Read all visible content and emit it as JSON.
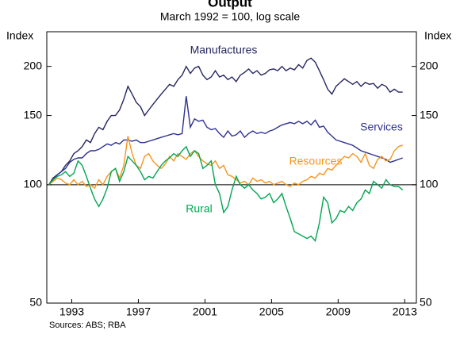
{
  "chart_data": {
    "type": "line",
    "title": "Output",
    "subtitle": "March 1992 = 100, log scale",
    "y_label": "Index",
    "y2_label": "Index",
    "source": "Sources: ABS; RBA",
    "log_scale": true,
    "grid": false,
    "reference_line": 100,
    "xlim": [
      1992,
      2014.2
    ],
    "xticks": [
      {
        "value": 1993.5,
        "label": "1993"
      },
      {
        "value": 1997.5,
        "label": "1997"
      },
      {
        "value": 2001.5,
        "label": "2001"
      },
      {
        "value": 2005.5,
        "label": "2005"
      },
      {
        "value": 2009.5,
        "label": "2009"
      },
      {
        "value": 2013.5,
        "label": "2013"
      }
    ],
    "ylim": [
      50,
      245
    ],
    "yticks": [
      50,
      100,
      150,
      200
    ],
    "y2lim": [
      50,
      245
    ],
    "y2ticks": [
      50,
      100,
      150,
      200
    ],
    "x": [
      1992.125,
      1992.375,
      1992.625,
      1992.875,
      1993.125,
      1993.375,
      1993.625,
      1993.875,
      1994.125,
      1994.375,
      1994.625,
      1994.875,
      1995.125,
      1995.375,
      1995.625,
      1995.875,
      1996.125,
      1996.375,
      1996.625,
      1996.875,
      1997.125,
      1997.375,
      1997.625,
      1997.875,
      1998.125,
      1998.375,
      1998.625,
      1998.875,
      1999.125,
      1999.375,
      1999.625,
      1999.875,
      2000.125,
      2000.375,
      2000.625,
      2000.875,
      2001.125,
      2001.375,
      2001.625,
      2001.875,
      2002.125,
      2002.375,
      2002.625,
      2002.875,
      2003.125,
      2003.375,
      2003.625,
      2003.875,
      2004.125,
      2004.375,
      2004.625,
      2004.875,
      2005.125,
      2005.375,
      2005.625,
      2005.875,
      2006.125,
      2006.375,
      2006.625,
      2006.875,
      2007.125,
      2007.375,
      2007.625,
      2007.875,
      2008.125,
      2008.375,
      2008.625,
      2008.875,
      2009.125,
      2009.375,
      2009.625,
      2009.875,
      2010.125,
      2010.375,
      2010.625,
      2010.875,
      2011.125,
      2011.375,
      2011.625,
      2011.875,
      2012.125,
      2012.375,
      2012.625,
      2012.875,
      2013.125,
      2013.375
    ],
    "series": [
      {
        "name": "Manufactures",
        "color": "#262661",
        "values": [
          100,
          104,
          106,
          108,
          112,
          115,
          120,
          122,
          125,
          130,
          128,
          135,
          140,
          138,
          145,
          150,
          150,
          155,
          165,
          178,
          170,
          162,
          158,
          150,
          155,
          160,
          165,
          170,
          175,
          180,
          178,
          185,
          190,
          200,
          192,
          198,
          200,
          190,
          185,
          188,
          195,
          188,
          190,
          185,
          188,
          183,
          190,
          193,
          197,
          192,
          195,
          190,
          192,
          196,
          197,
          195,
          200,
          195,
          198,
          196,
          202,
          198,
          207,
          210,
          205,
          195,
          185,
          175,
          170,
          178,
          182,
          186,
          183,
          180,
          183,
          178,
          182,
          180,
          181,
          176,
          180,
          178,
          172,
          175,
          172,
          172
        ]
      },
      {
        "name": "Services",
        "color": "#2e3192",
        "values": [
          100,
          103,
          106,
          108,
          110,
          114,
          116,
          117,
          117,
          120,
          122,
          122,
          123,
          125,
          127,
          126,
          128,
          127,
          130,
          130,
          129,
          130,
          128,
          128,
          129,
          130,
          131,
          132,
          133,
          134,
          135,
          134,
          135,
          168,
          140,
          147,
          145,
          146,
          140,
          138,
          139,
          135,
          132,
          137,
          133,
          134,
          137,
          132,
          135,
          137,
          135,
          136,
          135,
          137,
          138,
          140,
          142,
          143,
          144,
          143,
          145,
          143,
          145,
          142,
          146,
          140,
          141,
          136,
          133,
          130,
          129,
          128,
          127,
          126,
          124,
          122,
          121,
          120,
          119,
          118,
          117,
          116,
          114,
          115,
          116,
          117
        ]
      },
      {
        "name": "Resources",
        "color": "#f7941d",
        "values": [
          100,
          102,
          104,
          103,
          101,
          100,
          103,
          100,
          102,
          99,
          100,
          98,
          103,
          100,
          105,
          108,
          110,
          104,
          112,
          133,
          120,
          112,
          110,
          118,
          120,
          115,
          112,
          110,
          113,
          118,
          115,
          120,
          118,
          116,
          120,
          122,
          118,
          115,
          113,
          112,
          115,
          110,
          112,
          106,
          105,
          103,
          101,
          102,
          100,
          104,
          102,
          103,
          101,
          102,
          100,
          101,
          102,
          100,
          99,
          101,
          100,
          102,
          103,
          105,
          104,
          107,
          106,
          110,
          109,
          112,
          115,
          118,
          117,
          120,
          118,
          114,
          120,
          112,
          110,
          116,
          118,
          115,
          116,
          122,
          125,
          126
        ]
      },
      {
        "name": "Rural",
        "color": "#00a651",
        "values": [
          100,
          103,
          105,
          106,
          108,
          105,
          107,
          115,
          112,
          105,
          98,
          92,
          88,
          92,
          98,
          108,
          110,
          102,
          108,
          118,
          115,
          112,
          108,
          103,
          105,
          104,
          108,
          112,
          115,
          117,
          120,
          118,
          122,
          125,
          118,
          122,
          120,
          110,
          112,
          115,
          100,
          95,
          85,
          88,
          97,
          105,
          100,
          98,
          100,
          97,
          95,
          92,
          93,
          95,
          90,
          92,
          95,
          88,
          82,
          76,
          75,
          74,
          73,
          74,
          72,
          80,
          93,
          90,
          80,
          82,
          86,
          85,
          88,
          86,
          90,
          92,
          97,
          95,
          102,
          100,
          98,
          103,
          100,
          99,
          99,
          97
        ]
      }
    ]
  }
}
